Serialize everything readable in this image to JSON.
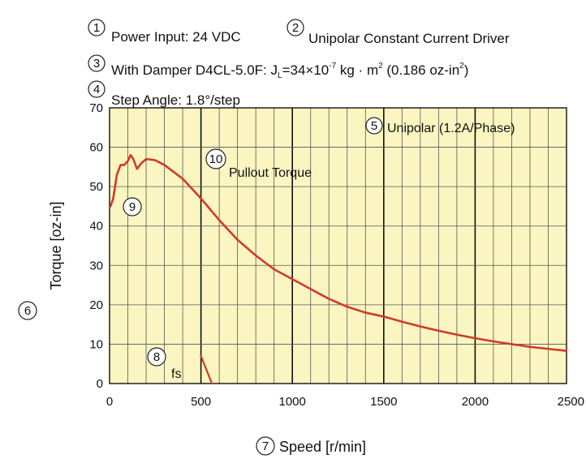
{
  "header": {
    "items": [
      {
        "num": "1",
        "text": "Power Input: 24 VDC"
      },
      {
        "num": "2",
        "text": "Unipolar Constant Current Driver"
      },
      {
        "num": "3",
        "text": "With Damper D4CL-5.0F: J"
      },
      {
        "num": "4",
        "text": "Step Angle: 1.8°/step"
      }
    ],
    "inertia": {
      "sub": "L",
      "eq": "=34×10",
      "exp": "-7",
      "unit": " kg · m",
      "unit_sup": "2",
      "paren": " (0.186 oz-in",
      "paren_sup": "2",
      "close": ")"
    }
  },
  "annotations": {
    "mode_num": "5",
    "mode_text": "Unipolar (1.2A/Phase)",
    "curve_num": "10",
    "curve_text": "Pullout Torque",
    "start_num": "9",
    "fs_num": "8",
    "fs_text": "fs",
    "ylabel_num": "6",
    "xlabel_num": "7"
  },
  "colors": {
    "plot_bg": "#fbf6c1",
    "curve": "#d23a2a",
    "grid_minor": "#555555",
    "grid_major": "#111111"
  },
  "chart_data": {
    "type": "line",
    "title": "",
    "xlabel": "Speed [r/min]",
    "ylabel": "Torque [oz-in]",
    "xlim": [
      0,
      2500
    ],
    "ylim": [
      0,
      70
    ],
    "xticks": [
      0,
      500,
      1000,
      1500,
      2000,
      2500
    ],
    "yticks": [
      0,
      10,
      20,
      30,
      40,
      50,
      60,
      70
    ],
    "x_minor_step": 100,
    "grid": true,
    "series": [
      {
        "name": "Pullout Torque",
        "x": [
          5,
          20,
          40,
          60,
          80,
          100,
          115,
          130,
          150,
          175,
          200,
          250,
          300,
          400,
          500,
          600,
          700,
          800,
          900,
          1000,
          1100,
          1200,
          1300,
          1400,
          1500,
          1600,
          1700,
          1800,
          1900,
          2000,
          2100,
          2200,
          2300,
          2400,
          2500
        ],
        "y": [
          45,
          47,
          53,
          55.5,
          55.5,
          56.5,
          58,
          57,
          54.5,
          56,
          57,
          56.7,
          55.5,
          52,
          47,
          41.5,
          36.5,
          32.5,
          29,
          26.5,
          24,
          21.5,
          19.5,
          18,
          17,
          15.7,
          14.5,
          13.4,
          12.4,
          11.5,
          10.7,
          10,
          9.3,
          8.8,
          8.3
        ]
      },
      {
        "name": "fs",
        "x": [
          500,
          560
        ],
        "y": [
          7,
          0
        ]
      }
    ]
  }
}
